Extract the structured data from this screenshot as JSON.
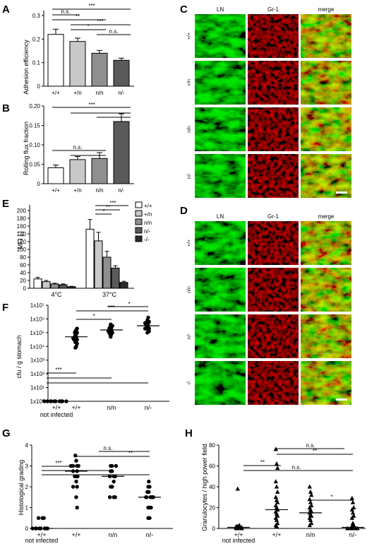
{
  "panels": {
    "A": {
      "letter": "A",
      "ylabel": "Adhesion efficiency",
      "categories": [
        "+/+",
        "+/n",
        "n/n",
        "n/-"
      ],
      "yticks": [
        "0",
        "0.1",
        "0.2",
        "0.3"
      ],
      "sig": [
        "n.s.",
        "**",
        "***",
        "*",
        "***",
        "n.s."
      ]
    },
    "B": {
      "letter": "B",
      "ylabel": "Rolling flux fraction",
      "categories": [
        "+/+",
        "+/n",
        "n/n",
        "n/-"
      ],
      "yticks": [
        "0",
        "0.05",
        "0.10",
        "0.15",
        "0.20"
      ],
      "sig": [
        "***",
        "n.s."
      ]
    },
    "C": {
      "letter": "C",
      "columns": [
        "LN",
        "Gr-1",
        "merge"
      ],
      "rows": [
        "+/+",
        "+/n",
        "n/n",
        "n/-"
      ]
    },
    "D": {
      "letter": "D",
      "columns": [
        "LN",
        "Gr-1",
        "merge"
      ],
      "rows": [
        "+/+",
        "n/n",
        "n/-",
        "-/-"
      ]
    },
    "E": {
      "letter": "E",
      "ylabel": "MFI [ ]",
      "groups": [
        "4°C",
        "37°C"
      ],
      "legend": [
        "+/+",
        "+/n",
        "n/n",
        "n/-",
        "-/-"
      ],
      "yticks": [
        "0",
        "20",
        "40",
        "60",
        "80",
        "100",
        "120",
        "140",
        "160",
        "180",
        "200"
      ],
      "sig": [
        "***",
        "**",
        "*"
      ]
    },
    "F": {
      "letter": "F",
      "ylabel": "cfu / g stomach",
      "categories": [
        "+/+",
        "+/+",
        "n/n",
        "n/-"
      ],
      "subcaption": "not infected",
      "yticks": [
        "1x10⁰",
        "1x10¹",
        "1x10²",
        "1x10³",
        "1x10⁴",
        "1x10⁵",
        "1x10⁶",
        "1x10⁷"
      ],
      "sig": [
        "*",
        "***",
        "*",
        "***"
      ]
    },
    "G": {
      "letter": "G",
      "ylabel": "Histological grading",
      "categories": [
        "+/+",
        "+/+",
        "n/n",
        "n/-"
      ],
      "subcaption": "not infected",
      "yticks": [
        "0",
        "1",
        "2",
        "3",
        "4"
      ],
      "sig": [
        "n.s.",
        "**",
        "***",
        "***"
      ]
    },
    "H": {
      "letter": "H",
      "ylabel": "Granulocytes / high power field",
      "categories": [
        "+/+",
        "+/+",
        "n/n",
        "n/-"
      ],
      "subcaption": "not infected",
      "yticks": [
        "0",
        "20",
        "40",
        "60",
        "80"
      ],
      "sig": [
        "n.s.",
        "**",
        "**",
        "n.s.",
        "*"
      ]
    }
  },
  "chart_data": [
    {
      "panel": "A",
      "type": "bar",
      "categories": [
        "+/+",
        "+/n",
        "n/n",
        "n/-"
      ],
      "values": [
        0.22,
        0.19,
        0.14,
        0.11
      ],
      "errors": [
        0.022,
        0.014,
        0.012,
        0.009
      ],
      "ylabel": "Adhesion efficiency",
      "ylim": [
        0,
        0.3
      ]
    },
    {
      "panel": "B",
      "type": "bar",
      "categories": [
        "+/+",
        "+/n",
        "n/n",
        "n/-"
      ],
      "values": [
        0.041,
        0.062,
        0.065,
        0.16
      ],
      "errors": [
        0.007,
        0.008,
        0.015,
        0.02
      ],
      "ylabel": "Rolling flux fraction",
      "ylim": [
        0,
        0.2
      ]
    },
    {
      "panel": "E",
      "type": "bar",
      "categories": [
        "4°C",
        "37°C"
      ],
      "ylabel": "MFI [ ]",
      "ylim": [
        0,
        200
      ],
      "series": [
        {
          "name": "+/+",
          "values": [
            24,
            152
          ],
          "errors": [
            4,
            25
          ]
        },
        {
          "name": "+/n",
          "values": [
            17,
            122
          ],
          "errors": [
            3,
            22
          ]
        },
        {
          "name": "n/n",
          "values": [
            11,
            80
          ],
          "errors": [
            2,
            15
          ]
        },
        {
          "name": "n/-",
          "values": [
            9,
            52
          ],
          "errors": [
            2,
            6
          ]
        },
        {
          "name": "-/-",
          "values": [
            4,
            15
          ],
          "errors": [
            1,
            3
          ]
        }
      ]
    },
    {
      "panel": "F",
      "type": "scatter",
      "categories": [
        "+/+",
        "+/+",
        "n/n",
        "n/-"
      ],
      "ylabel": "cfu / g stomach",
      "ylim": [
        0,
        7
      ],
      "scale": "log10",
      "medians": [
        0,
        4.7,
        5.2,
        5.5
      ],
      "points": [
        [
          0,
          0,
          0,
          0,
          0,
          0,
          0,
          0,
          0,
          0
        ],
        [
          4.3,
          4.4,
          4.5,
          4.6,
          4.7,
          4.7,
          4.8,
          4.9,
          5.0,
          5.1,
          5.2,
          5.3,
          4.6,
          4.5,
          4.2,
          3.9,
          4.0,
          5.0
        ],
        [
          4.8,
          4.9,
          5.0,
          5.1,
          5.2,
          5.2,
          5.3,
          5.4,
          5.5,
          5.6,
          5.0,
          4.9,
          5.1,
          5.3,
          5.4,
          4.7
        ],
        [
          5.0,
          5.2,
          5.3,
          5.4,
          5.5,
          5.5,
          5.6,
          5.7,
          5.8,
          5.9,
          6.1,
          5.4,
          5.3,
          5.6,
          5.1,
          5.7
        ]
      ]
    },
    {
      "panel": "G",
      "type": "scatter",
      "categories": [
        "+/+",
        "+/+",
        "n/n",
        "n/-"
      ],
      "ylabel": "Histological grading",
      "ylim": [
        0,
        4
      ],
      "medians": [
        0,
        2.75,
        2.5,
        1.5
      ],
      "points": [
        [
          0,
          0,
          0,
          0,
          0,
          0,
          0,
          0,
          0.5,
          0.5,
          0.5
        ],
        [
          3.5,
          3.25,
          3.0,
          3.0,
          3.0,
          2.75,
          2.75,
          2.5,
          2.5,
          2.5,
          2.25,
          2.0,
          2.0,
          1.5,
          1.0,
          3.0
        ],
        [
          3.0,
          3.0,
          3.0,
          2.75,
          2.75,
          2.5,
          2.5,
          2.5,
          2.25,
          2.0,
          2.0,
          1.5,
          1.5,
          1.5
        ],
        [
          2.25,
          2.0,
          2.0,
          1.75,
          1.75,
          1.5,
          1.5,
          1.5,
          1.5,
          1.5,
          1.0,
          1.0,
          1.0,
          0.5,
          0.5
        ]
      ]
    },
    {
      "panel": "H",
      "type": "scatter",
      "categories": [
        "+/+",
        "+/+",
        "n/n",
        "n/-"
      ],
      "ylabel": "Granulocytes / high power field",
      "ylim": [
        0,
        80
      ],
      "medians": [
        1,
        18,
        15,
        1
      ],
      "points": [
        [
          0,
          0,
          0,
          1,
          1,
          1,
          2,
          2,
          3,
          38
        ],
        [
          76,
          62,
          58,
          45,
          40,
          35,
          30,
          27,
          25,
          22,
          20,
          18,
          16,
          14,
          12,
          10,
          8,
          5,
          3,
          2
        ],
        [
          40,
          35,
          32,
          28,
          25,
          22,
          20,
          18,
          16,
          15,
          13,
          12,
          10,
          8,
          5,
          3
        ],
        [
          29,
          25,
          20,
          18,
          15,
          12,
          10,
          5,
          3,
          2,
          1,
          1,
          0,
          0,
          0,
          0,
          0
        ]
      ]
    }
  ]
}
